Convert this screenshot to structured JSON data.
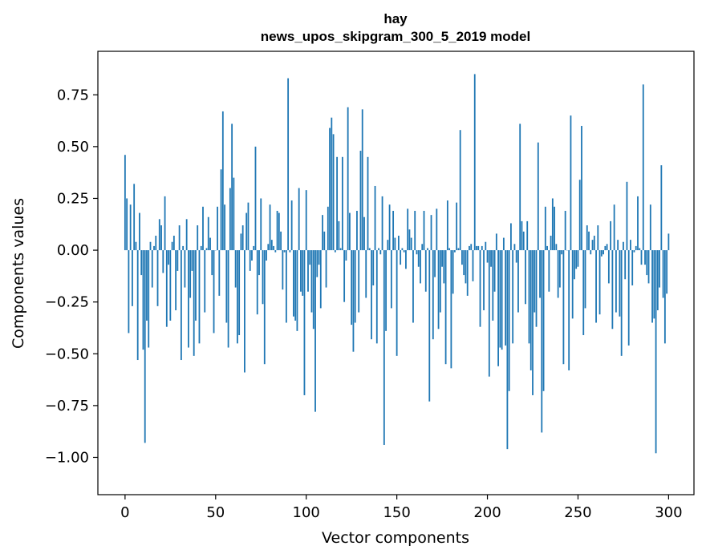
{
  "chart_data": {
    "type": "bar",
    "title": "hay",
    "subtitle": "news_upos_skipgram_300_5_2019 model",
    "xlabel": "Vector components",
    "ylabel": "Components values",
    "xlim": [
      -15,
      314
    ],
    "ylim": [
      -1.18,
      0.96
    ],
    "xticks": [
      0,
      50,
      100,
      150,
      200,
      250,
      300
    ],
    "xtick_labels": [
      "0",
      "50",
      "100",
      "150",
      "200",
      "250",
      "300"
    ],
    "yticks": [
      0.75,
      0.5,
      0.25,
      0.0,
      -0.25,
      -0.5,
      -0.75,
      -1.0
    ],
    "ytick_labels": [
      "0.75",
      "0.50",
      "0.25",
      "0.00",
      "−0.25",
      "−0.50",
      "−0.75",
      "−1.00"
    ],
    "bar_color": "#1f77b4",
    "series": [
      {
        "name": "hay",
        "x_start": 0,
        "values": [
          0.46,
          0.25,
          -0.4,
          0.22,
          -0.27,
          0.32,
          0.04,
          -0.53,
          0.18,
          -0.12,
          -0.48,
          -0.93,
          -0.34,
          -0.47,
          0.04,
          -0.18,
          0.02,
          0.07,
          -0.27,
          0.15,
          0.12,
          -0.11,
          0.26,
          -0.37,
          -0.07,
          -0.34,
          0.04,
          0.07,
          -0.29,
          -0.1,
          0.12,
          -0.53,
          0.02,
          -0.18,
          0.15,
          -0.47,
          -0.23,
          -0.1,
          -0.51,
          -0.34,
          0.12,
          -0.45,
          0.02,
          0.21,
          -0.3,
          0.01,
          0.16,
          0.06,
          -0.12,
          -0.4,
          0.0,
          0.21,
          -0.22,
          0.39,
          0.67,
          0.22,
          -0.35,
          -0.47,
          0.3,
          0.61,
          0.35,
          -0.18,
          -0.45,
          -0.41,
          0.08,
          0.12,
          -0.59,
          0.18,
          0.23,
          -0.1,
          -0.05,
          0.02,
          0.5,
          -0.31,
          -0.12,
          0.25,
          -0.26,
          -0.55,
          -0.05,
          0.03,
          0.22,
          0.05,
          0.02,
          -0.01,
          0.19,
          0.18,
          0.09,
          -0.19,
          -0.01,
          -0.35,
          0.83,
          -0.01,
          0.24,
          -0.32,
          -0.34,
          -0.39,
          0.3,
          -0.2,
          -0.22,
          -0.7,
          0.29,
          -0.2,
          -0.07,
          -0.3,
          -0.38,
          -0.78,
          -0.13,
          -0.07,
          -0.28,
          0.17,
          0.09,
          -0.18,
          0.21,
          0.59,
          0.64,
          0.56,
          -0.01,
          0.45,
          0.14,
          0.01,
          0.45,
          -0.25,
          -0.05,
          0.69,
          0.18,
          -0.36,
          -0.49,
          -0.35,
          0.19,
          -0.3,
          0.48,
          0.68,
          0.16,
          -0.23,
          0.45,
          0.01,
          -0.43,
          -0.17,
          0.31,
          -0.45,
          0.01,
          -0.02,
          0.26,
          -0.94,
          -0.39,
          0.05,
          0.22,
          -0.28,
          0.19,
          0.06,
          -0.51,
          0.07,
          -0.07,
          0.01,
          -0.01,
          -0.09,
          0.2,
          0.1,
          0.06,
          -0.35,
          0.19,
          -0.02,
          -0.08,
          -0.16,
          0.03,
          0.19,
          -0.2,
          0.01,
          -0.73,
          0.17,
          -0.43,
          -0.13,
          0.2,
          -0.38,
          -0.3,
          -0.08,
          -0.16,
          -0.55,
          0.24,
          0.01,
          -0.57,
          -0.21,
          -0.01,
          0.23,
          0.01,
          0.58,
          -0.07,
          -0.12,
          -0.16,
          -0.22,
          0.02,
          0.03,
          -0.15,
          0.85,
          0.02,
          0.02,
          -0.37,
          0.02,
          -0.29,
          0.04,
          -0.06,
          -0.61,
          -0.08,
          -0.34,
          -0.2,
          0.08,
          -0.56,
          -0.47,
          -0.48,
          0.06,
          -0.46,
          -0.96,
          -0.68,
          0.13,
          -0.45,
          0.03,
          -0.06,
          -0.3,
          0.61,
          0.14,
          0.09,
          -0.26,
          0.14,
          -0.45,
          -0.58,
          -0.7,
          -0.3,
          -0.37,
          0.52,
          -0.23,
          -0.88,
          -0.68,
          0.21,
          0.02,
          -0.2,
          0.07,
          0.25,
          0.21,
          0.03,
          -0.23,
          -0.18,
          -0.02,
          -0.55,
          0.19,
          0.0,
          -0.58,
          0.65,
          -0.33,
          -0.14,
          -0.09,
          -0.08,
          0.34,
          0.6,
          -0.41,
          -0.28,
          0.12,
          0.09,
          -0.02,
          0.05,
          0.07,
          -0.35,
          0.12,
          -0.31,
          -0.03,
          -0.02,
          0.02,
          0.03,
          -0.16,
          0.14,
          -0.38,
          0.22,
          -0.3,
          0.05,
          -0.32,
          -0.51,
          0.04,
          -0.14,
          0.33,
          -0.46,
          0.05,
          -0.17,
          -0.01,
          0.02,
          0.26,
          0.01,
          -0.07,
          0.8,
          -0.07,
          -0.12,
          -0.16,
          0.22,
          -0.35,
          -0.33,
          -0.98,
          -0.29,
          -0.18,
          0.41,
          -0.23,
          -0.45,
          -0.21,
          0.08
        ]
      }
    ]
  }
}
